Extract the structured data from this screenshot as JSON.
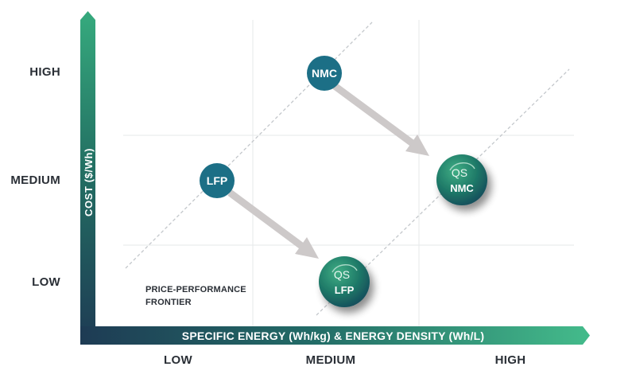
{
  "y_axis": {
    "title": "COST ($/Wh)",
    "levels": [
      "HIGH",
      "MEDIUM",
      "LOW"
    ]
  },
  "x_axis": {
    "title": "SPECIFIC ENERGY (Wh/kg) & ENERGY DENSITY (Wh/L)",
    "levels": [
      "LOW",
      "MEDIUM",
      "HIGH"
    ]
  },
  "frontier_label": [
    "PRICE-PERFORMANCE",
    "FRONTIER"
  ],
  "nodes": {
    "nmc": {
      "label": "NMC"
    },
    "lfp": {
      "label": "LFP"
    },
    "qs_nmc": {
      "prefix": "QS",
      "label": "NMC"
    },
    "qs_lfp": {
      "prefix": "QS",
      "label": "LFP"
    }
  },
  "colors": {
    "primary_teal": "#1c6f86",
    "green": "#2f9c73",
    "navy": "#1e3b54",
    "arrow_gray": "#cdc9c9",
    "grid": "#e6e8ea",
    "dash": "#c3c7cb"
  },
  "icons": {
    "qs_badge": "qs-swoosh-logo"
  }
}
